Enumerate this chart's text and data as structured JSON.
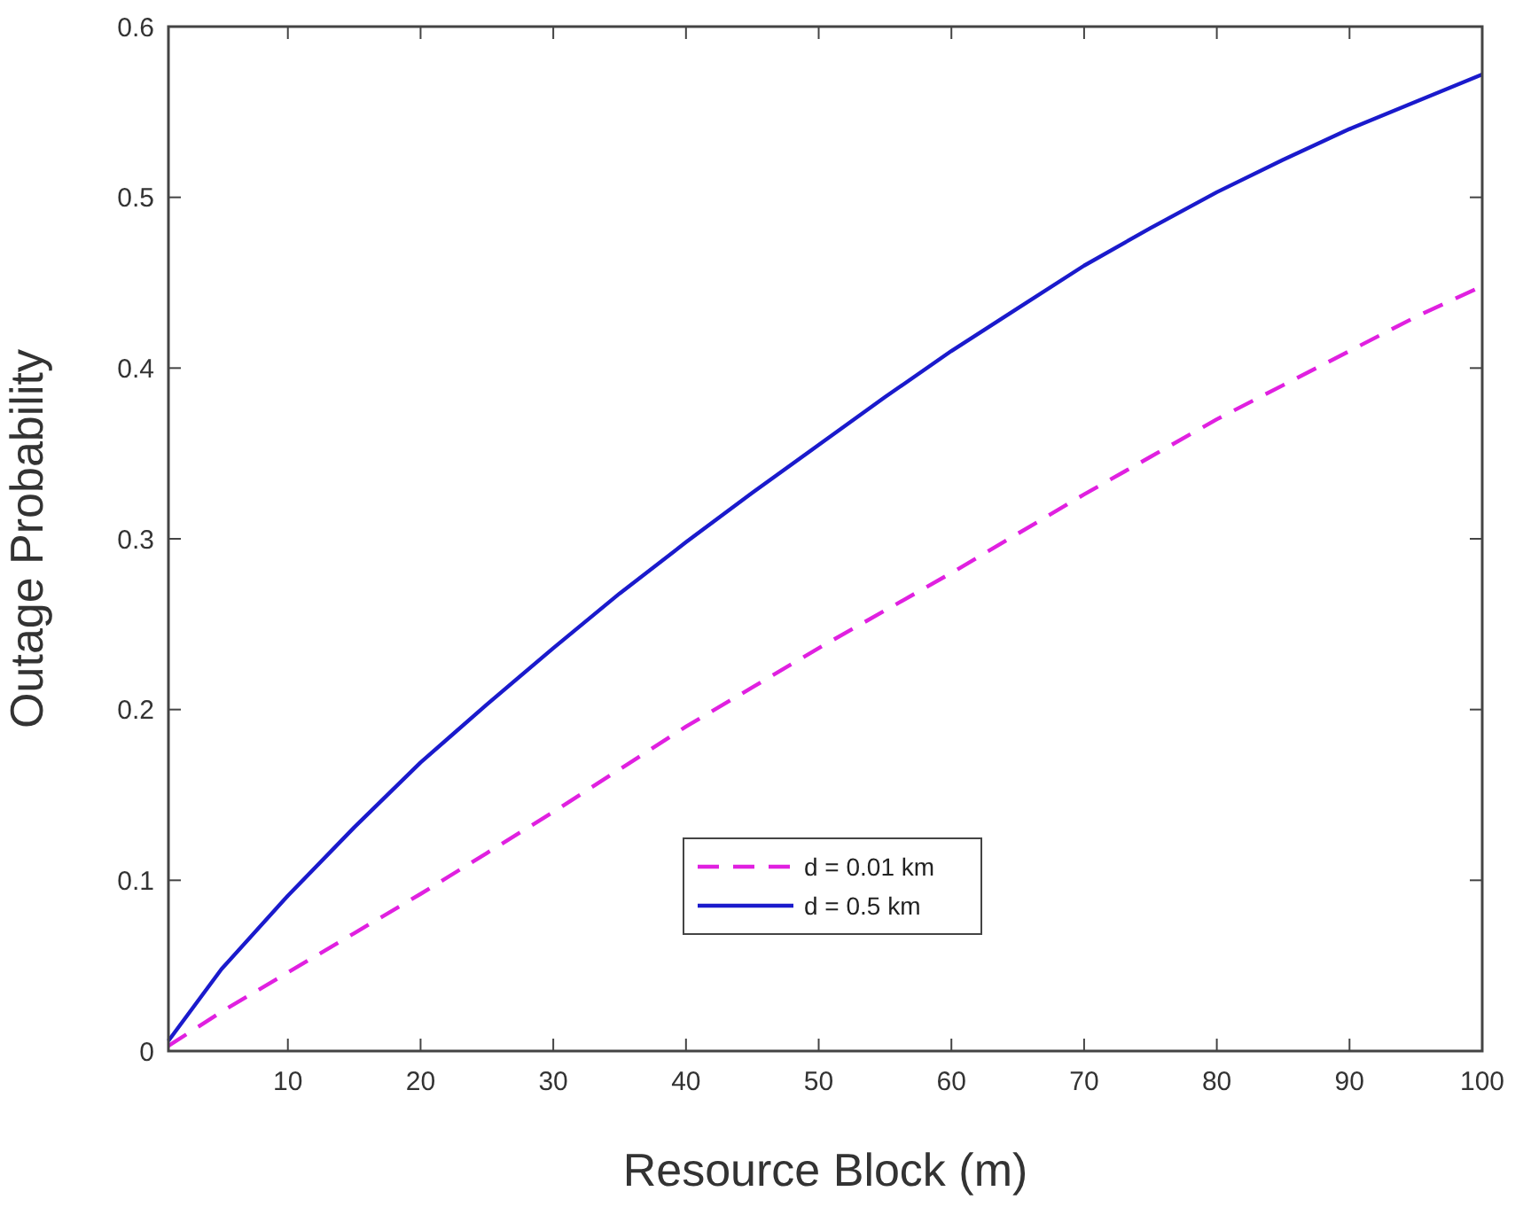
{
  "chart_data": {
    "type": "line",
    "xlabel": "Resource Block (m)",
    "ylabel": "Outage Probability",
    "x": [
      1,
      5,
      10,
      15,
      20,
      25,
      30,
      35,
      40,
      45,
      50,
      55,
      60,
      65,
      70,
      75,
      80,
      85,
      90,
      95,
      100
    ],
    "xlim": [
      1,
      100
    ],
    "xticks": [
      10,
      20,
      30,
      40,
      50,
      60,
      70,
      80,
      90,
      100
    ],
    "ylim": [
      0,
      0.6
    ],
    "yticks": [
      0,
      0.1,
      0.2,
      0.3,
      0.4,
      0.5,
      0.6
    ],
    "grid": false,
    "legend": "bottom",
    "marker": "none",
    "series": [
      {
        "name": "d = 0.01 km",
        "color": "#e020e0",
        "line_style": "dashed",
        "values": [
          0.003,
          0.023,
          0.046,
          0.069,
          0.092,
          0.116,
          0.14,
          0.165,
          0.19,
          0.213,
          0.236,
          0.258,
          0.28,
          0.303,
          0.326,
          0.348,
          0.37,
          0.39,
          0.41,
          0.43,
          0.448
        ]
      },
      {
        "name": "d = 0.5 km",
        "color": "#1a1acc",
        "line_style": "solid",
        "values": [
          0.006,
          0.048,
          0.091,
          0.131,
          0.169,
          0.203,
          0.236,
          0.268,
          0.298,
          0.327,
          0.355,
          0.383,
          0.41,
          0.435,
          0.46,
          0.482,
          0.503,
          0.522,
          0.54,
          0.556,
          0.572
        ]
      }
    ]
  }
}
